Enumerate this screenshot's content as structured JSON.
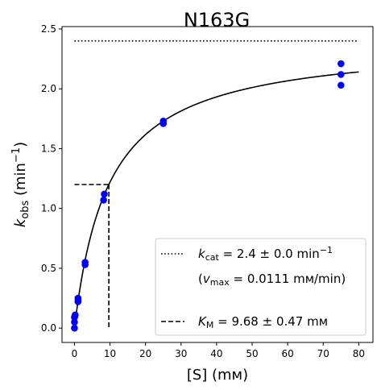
{
  "chart_data": {
    "type": "scatter",
    "title": "N163G",
    "xlabel": "[S] (mм)",
    "ylabel": {
      "k": "k",
      "sub": "obs",
      "unit_open": " (min",
      "sup": "−1",
      "unit_close": ")"
    },
    "xlim": [
      -3.5,
      84
    ],
    "ylim": [
      -0.12,
      2.52
    ],
    "x_ticks": [
      0,
      10,
      20,
      30,
      40,
      50,
      60,
      70,
      80
    ],
    "y_ticks": [
      0.0,
      0.5,
      1.0,
      1.5,
      2.0,
      2.5
    ],
    "x_tick_labels": [
      "0",
      "10",
      "20",
      "30",
      "40",
      "50",
      "60",
      "70",
      "80"
    ],
    "y_tick_labels": [
      "0.0",
      "0.5",
      "1.0",
      "1.5",
      "2.0",
      "2.5"
    ],
    "grid": false,
    "points": {
      "color": "#0000ff",
      "x": [
        0,
        0,
        0,
        0.1,
        0.2,
        1.0,
        1.0,
        1.0,
        3.0,
        3.0,
        8.2,
        8.4,
        25,
        25,
        75,
        75,
        75
      ],
      "y": [
        0.0,
        0.05,
        0.09,
        0.1,
        0.11,
        0.22,
        0.23,
        0.25,
        0.53,
        0.55,
        1.07,
        1.12,
        1.71,
        1.73,
        2.03,
        2.12,
        2.21
      ]
    },
    "fit": {
      "model": "michaelis-menten",
      "kcat": 2.4,
      "KM": 9.68,
      "x_range": [
        0,
        80
      ],
      "color": "#000000"
    },
    "kcat_line": {
      "y": 2.4,
      "x_range": [
        0,
        80
      ],
      "style": "dotted"
    },
    "KM_lines": {
      "x": 9.68,
      "y": 1.2,
      "style": "dashed"
    },
    "legend": {
      "placement": "lower-right",
      "entries": [
        {
          "style": "dotted",
          "k": "k",
          "sub": "cat",
          "text": " = 2.4 ± 0.0 min",
          "sup": "−1"
        },
        {
          "style": "none",
          "open": "(",
          "v": "v",
          "sub": "max",
          "text": " = 0.0111 mм/min)"
        },
        {
          "style": "dashed",
          "k": "K",
          "sub": "M",
          "text": " = 9.68 ± 0.47 mм"
        }
      ]
    }
  }
}
